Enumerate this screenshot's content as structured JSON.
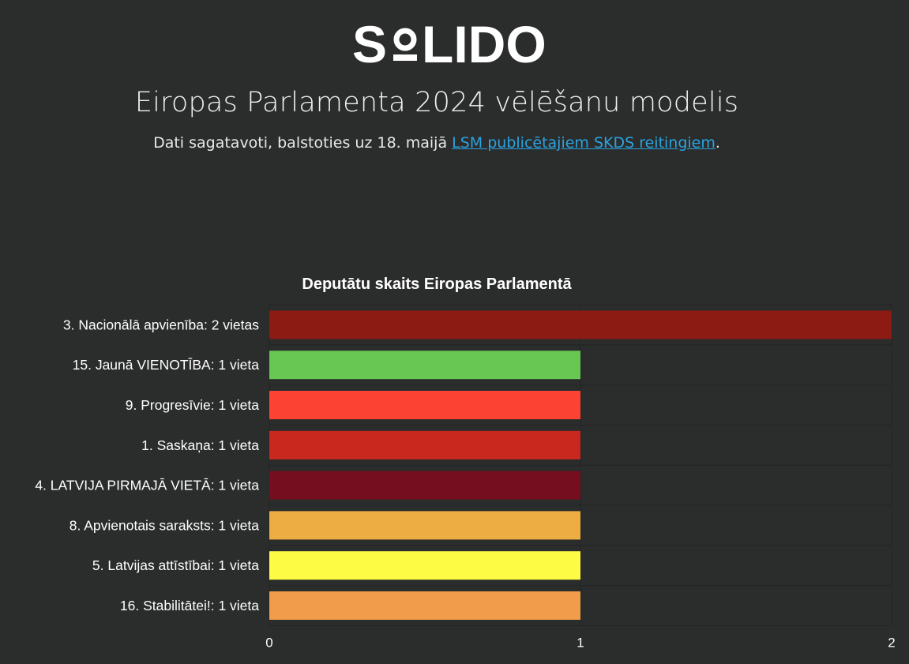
{
  "logo": {
    "text": "SOLIDO"
  },
  "header": {
    "title": "Eiropas Parlamenta 2024 vēlēšanu modelis",
    "subtitle_prefix": "Dati sagatavoti, balstoties uz 18. maijā ",
    "subtitle_link": "LSM publicētajiem SKDS reitingiem",
    "subtitle_suffix": "."
  },
  "colors": {
    "background": "#2b2c2c",
    "link": "#2aa3e0"
  },
  "chart_data": {
    "type": "bar",
    "orientation": "horizontal",
    "title": "Deputātu skaits Eiropas Parlamentā",
    "xlabel": "",
    "ylabel": "",
    "xlim": [
      0,
      2
    ],
    "x_ticks": [
      0,
      1,
      2
    ],
    "grid": true,
    "categories": [
      "3. Nacionālā apvienība: 2 vietas",
      "15. Jaunā VIENOTĪBA: 1 vieta",
      "9. Progresīvie: 1 vieta",
      "1. Saskaņa: 1 vieta",
      "4. LATVIJA PIRMAJĀ VIETĀ: 1 vieta",
      "8. Apvienotais saraksts: 1 vieta",
      "5. Latvijas attīstībai: 1 vieta",
      "16. Stabilitātei!: 1 vieta"
    ],
    "values": [
      2,
      1,
      1,
      1,
      1,
      1,
      1,
      1
    ],
    "colors": [
      "#8c1b13",
      "#68c653",
      "#fb4233",
      "#c9281e",
      "#750e1f",
      "#edad42",
      "#fdfb44",
      "#f09c4a"
    ]
  }
}
